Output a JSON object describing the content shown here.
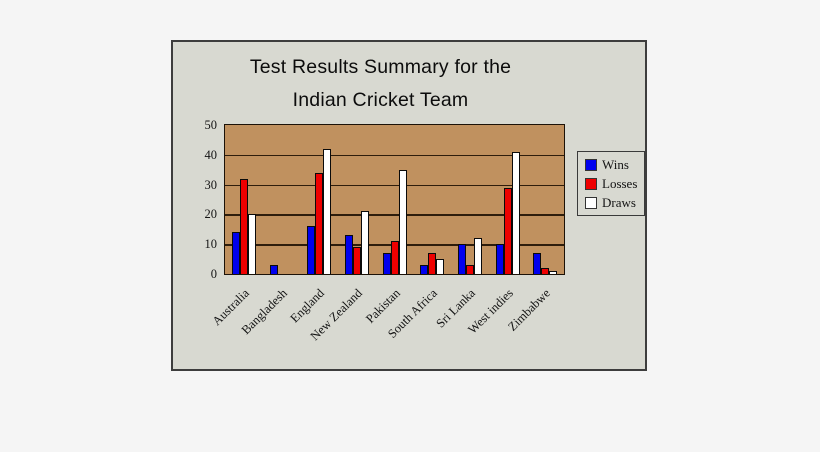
{
  "title": {
    "line1": "Test Results Summary for the",
    "line2": "Indian Cricket Team"
  },
  "chart_data": {
    "type": "bar",
    "title": "Test Results Summary for the Indian Cricket Team",
    "categories": [
      "Australia",
      "Bangladesh",
      "England",
      "New Zealand",
      "Pakistan",
      "South Africa",
      "Sri Lanka",
      "West indies",
      "Zimbabwe"
    ],
    "series": [
      {
        "name": "Wins",
        "color": "#0000ee",
        "values": [
          14,
          3,
          16,
          13,
          7,
          3,
          10,
          10,
          7
        ]
      },
      {
        "name": "Losses",
        "color": "#ee0000",
        "values": [
          32,
          0,
          34,
          9,
          11,
          7,
          3,
          29,
          2
        ]
      },
      {
        "name": "Draws",
        "color": "#ffffff",
        "values": [
          20,
          0,
          42,
          21,
          35,
          5,
          12,
          41,
          1
        ]
      }
    ],
    "xlabel": "",
    "ylabel": "",
    "ylim": [
      0,
      50
    ],
    "yticks": [
      0,
      10,
      20,
      30,
      40,
      50
    ],
    "grid": true,
    "legend_position": "right",
    "colors": {
      "plot_background": "#c0915f",
      "panel_background": "#d8d9d1",
      "page_background": "#f5f5f5",
      "gridline": "#2e1d0c",
      "bar_outline": "#0a0a0a"
    }
  },
  "legend": {
    "items": [
      {
        "label": "Wins",
        "color": "#0000ee"
      },
      {
        "label": "Losses",
        "color": "#ee0000"
      },
      {
        "label": "Draws",
        "color": "#ffffff"
      }
    ]
  }
}
